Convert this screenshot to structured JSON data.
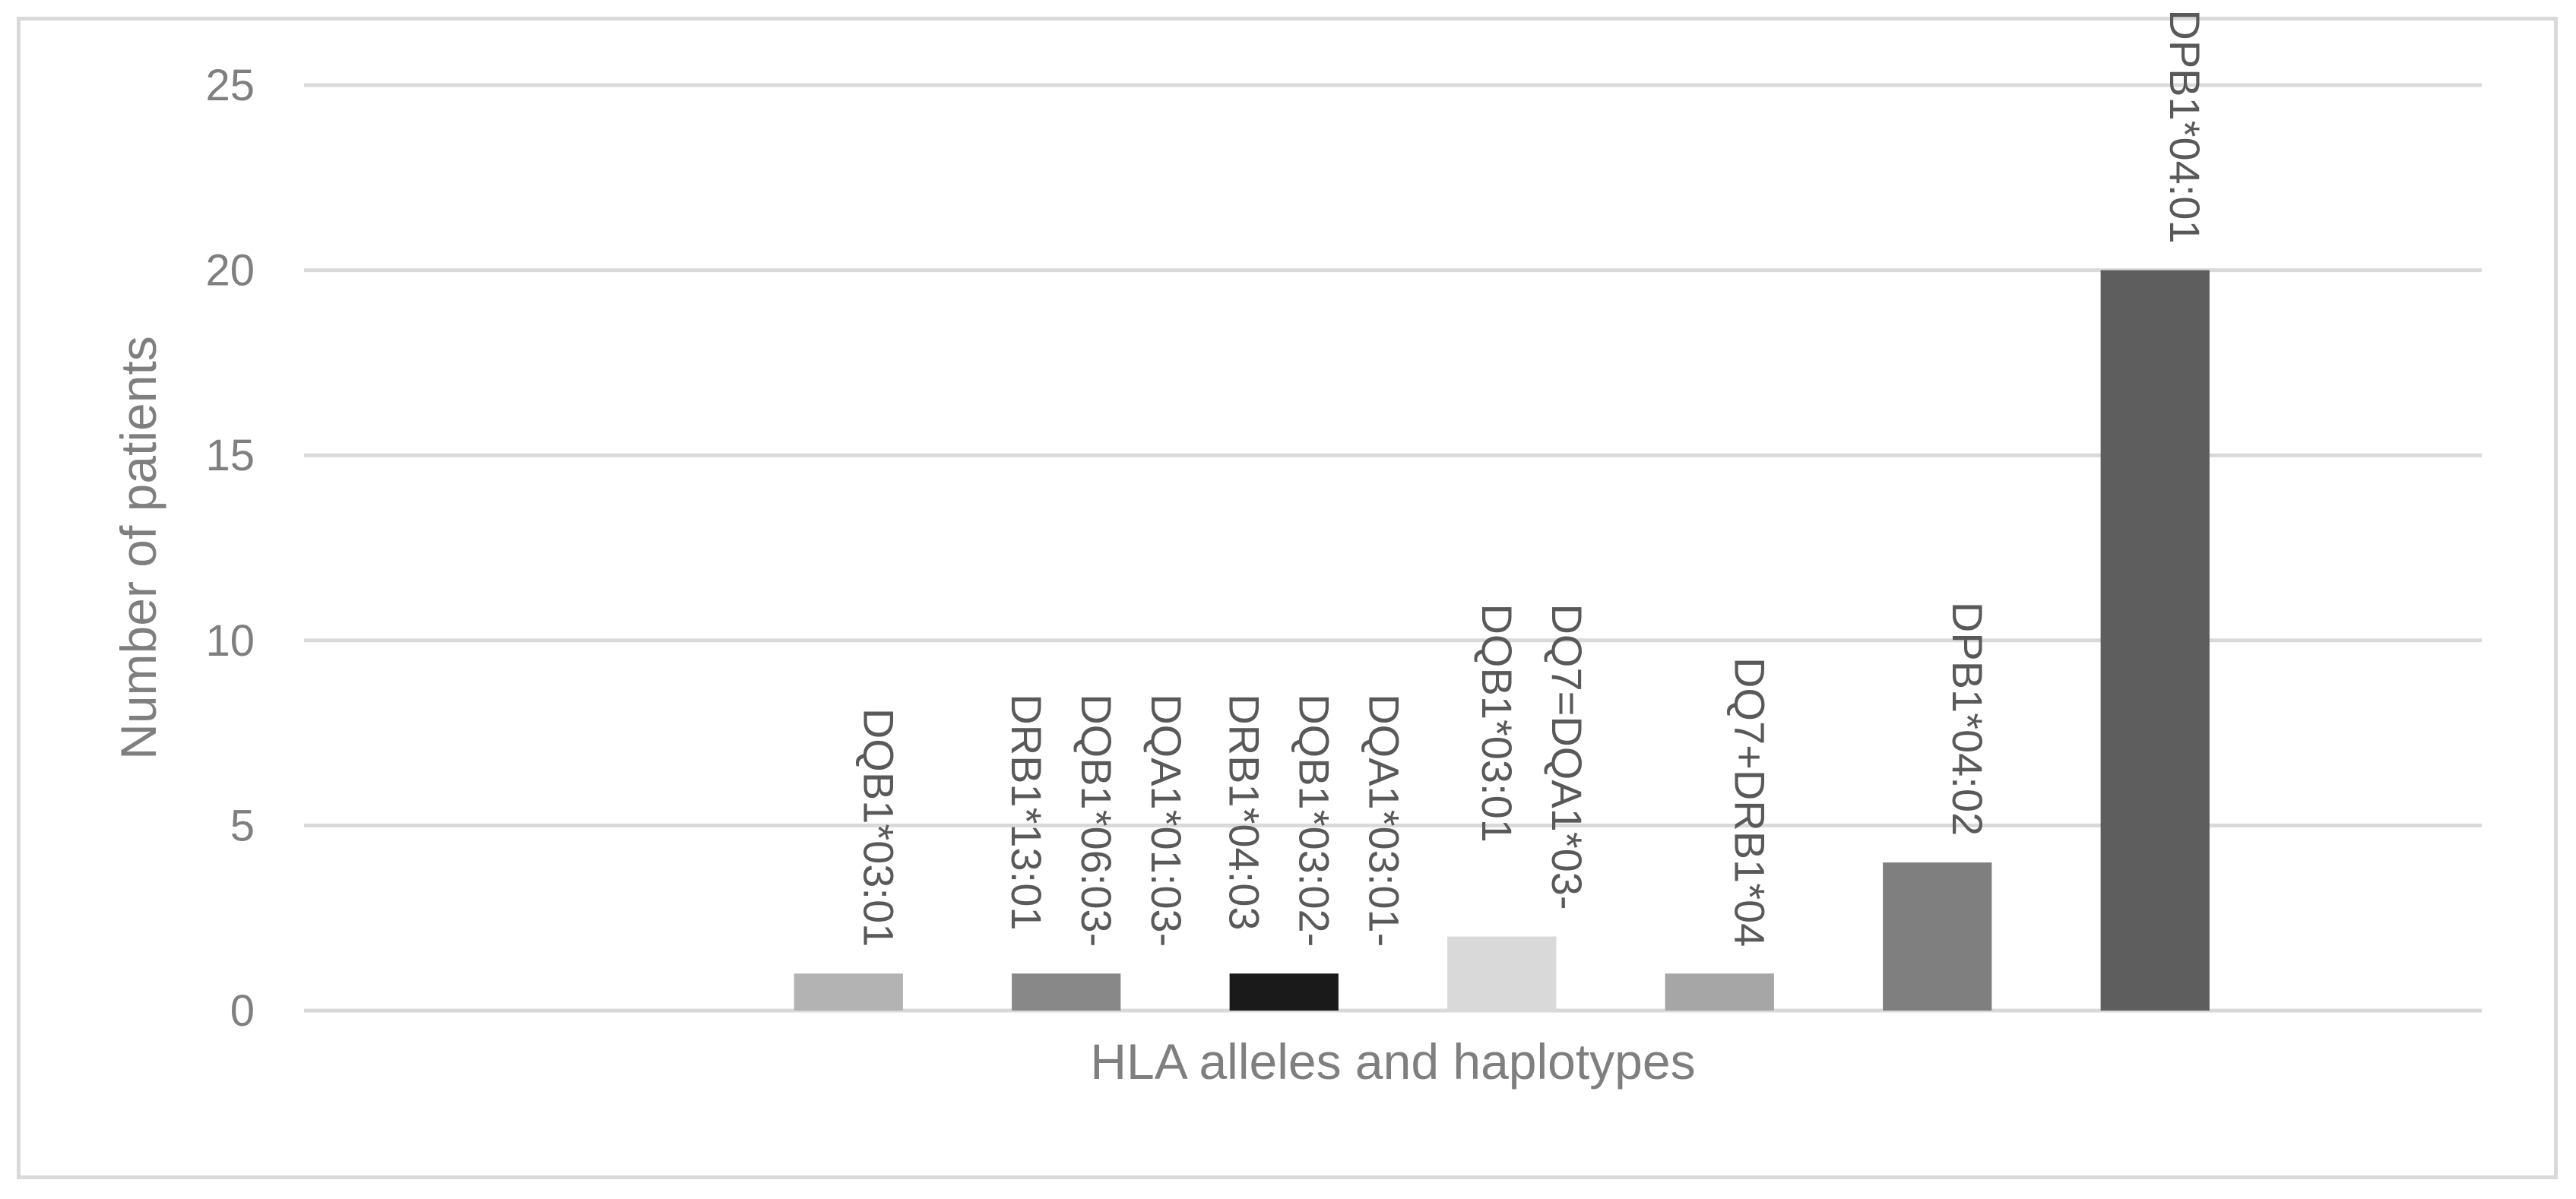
{
  "chart_data": {
    "type": "bar",
    "xlabel": "HLA alleles and haplotypes",
    "ylabel": "Number of patients",
    "ylim": [
      0,
      25
    ],
    "yticks": [
      0,
      5,
      10,
      15,
      20,
      25
    ],
    "grid": true,
    "categories": [
      "",
      "",
      "DQB1*03:01",
      "DQA1*01:03-DQB1*06:03-DRB1*13:01",
      "DQA1*03:01-DQB1*03:02-DRB1*04:03",
      "DQ7=DQA1*03-DQB1*03:01",
      "DQ7+DRB1*04",
      "DPB1*04:02",
      "DPB1*04:01",
      ""
    ],
    "label_lines": [
      [],
      [],
      [
        "DQB1*03:01"
      ],
      [
        "DQA1*01:03-",
        "DQB1*06:03-",
        "DRB1*13:01"
      ],
      [
        "DQA1*03:01-",
        "DQB1*03:02-",
        "DRB1*04:03"
      ],
      [
        "DQ7=DQA1*03-",
        "DQB1*03:01"
      ],
      [
        "DQ7+DRB1*04"
      ],
      [
        "DPB1*04:02"
      ],
      [
        "DPB1*04:01"
      ],
      []
    ],
    "values": [
      null,
      null,
      1,
      1,
      1,
      2,
      1,
      4,
      20,
      null
    ],
    "colors": [
      "#ffffff",
      "#ffffff",
      "#b3b3b3",
      "#888888",
      "#1a1a1a",
      "#d9d9d9",
      "#a6a6a6",
      "#7f7f7f",
      "#5e5e5e",
      "#ffffff"
    ]
  }
}
